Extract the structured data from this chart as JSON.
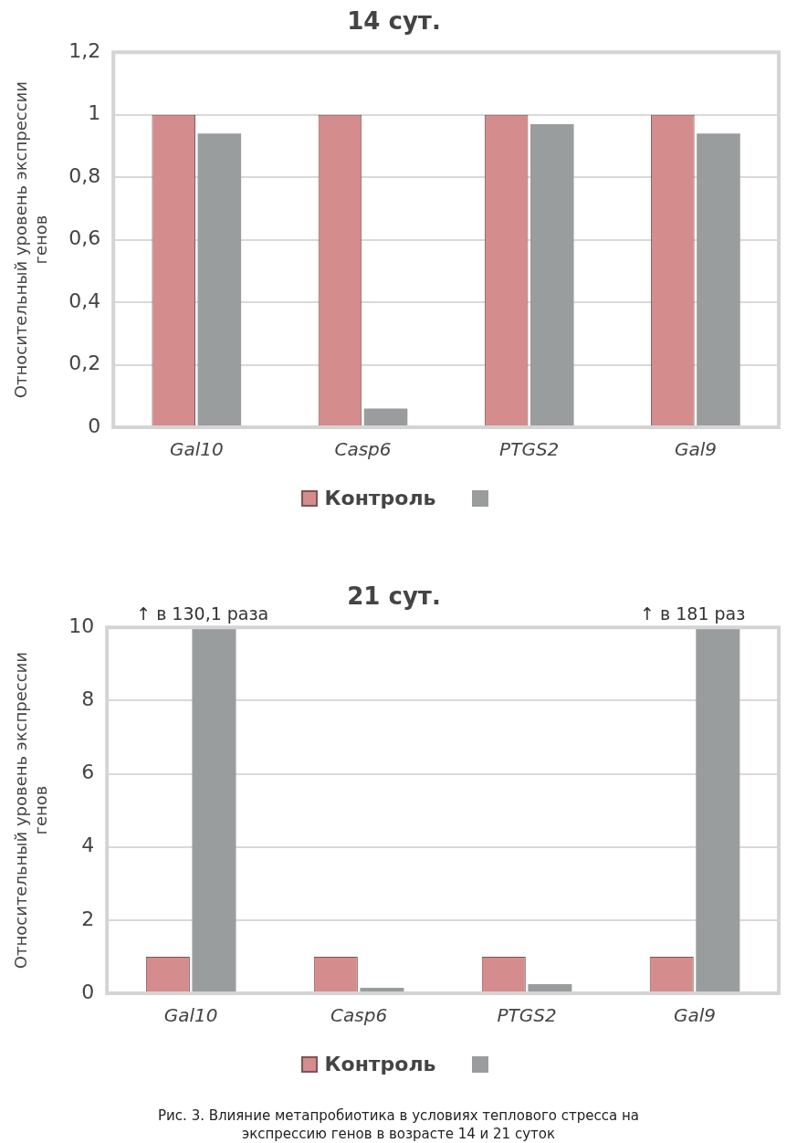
{
  "chart_data": [
    {
      "type": "bar",
      "title": "14 сут.",
      "ylabel": "Относительный уровень экспрессии генов",
      "categories": [
        "Gal10",
        "Casp6",
        "PTGS2",
        "Gal9"
      ],
      "series": [
        {
          "name": "Контроль",
          "color": "#d48c8c",
          "values": [
            1,
            1,
            1,
            1
          ]
        },
        {
          "color": "#9a9d9e",
          "values": [
            0.94,
            0.06,
            0.97,
            0.94
          ]
        }
      ],
      "ylim": [
        0,
        1.2
      ],
      "yticks": [
        {
          "value": 0,
          "label": "0"
        },
        {
          "value": 0.2,
          "label": "0,2"
        },
        {
          "value": 0.4,
          "label": "0,4"
        },
        {
          "value": 0.6,
          "label": "0,6"
        },
        {
          "value": 0.8,
          "label": "0,8"
        },
        {
          "value": 1,
          "label": "1"
        },
        {
          "value": 1.2,
          "label": "1,2"
        }
      ],
      "grid": "y",
      "legend": "bottom"
    },
    {
      "type": "bar",
      "title": "21 сут.",
      "ylabel": "Относительный уровень экспрессии генов",
      "categories": [
        "Gal10",
        "Casp6",
        "PTGS2",
        "Gal9"
      ],
      "series": [
        {
          "name": "Контроль",
          "color": "#d48c8c",
          "values": [
            1,
            1,
            1,
            1
          ]
        },
        {
          "color": "#9a9d9e",
          "values": [
            10,
            0.15,
            0.25,
            10
          ]
        }
      ],
      "ylim": [
        0,
        10
      ],
      "yticks": [
        0,
        2,
        4,
        6,
        8,
        10
      ],
      "grid": "y",
      "legend": "bottom",
      "annotations": [
        {
          "text": "↑ в 130,1 раза",
          "x": "Gal10",
          "y": 10
        },
        {
          "text": "↑ в 181 раз",
          "x": "Gal9",
          "y": 10
        },
        "Рис. 3. Влияние метапробиотика в условиях теплового стресса на экспрессию генов в возрасте 14 и 21 суток"
      ]
    }
  ]
}
